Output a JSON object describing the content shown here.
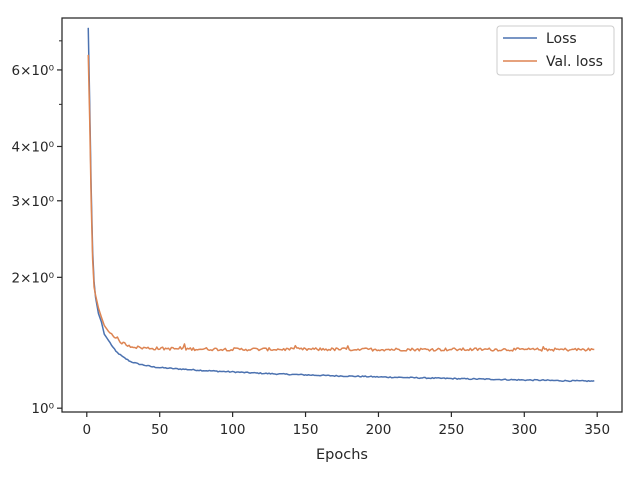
{
  "chart_data": {
    "type": "line",
    "title": "",
    "xlabel": "Epochs",
    "ylabel": "",
    "xlim": [
      -17,
      367
    ],
    "ylim": [
      0.98,
      7.9
    ],
    "yscale": "log",
    "grid": false,
    "legend_position": "top-right",
    "x_ticks": [
      0,
      50,
      100,
      150,
      200,
      250,
      300,
      350
    ],
    "x_tick_labels": [
      "0",
      "50",
      "100",
      "150",
      "200",
      "250",
      "300",
      "350"
    ],
    "y_major_ticks": [
      1,
      2,
      3,
      4,
      6
    ],
    "y_major_tick_labels": [
      "10⁰",
      "2×10⁰",
      "3×10⁰",
      "4×10⁰",
      "6×10⁰"
    ],
    "y_minor_ticks": [
      5,
      7
    ],
    "series": [
      {
        "name": "Loss",
        "color": "#4c72b0",
        "points": [
          [
            1,
            7.5
          ],
          [
            2,
            5.0
          ],
          [
            3,
            3.2
          ],
          [
            4,
            2.3
          ],
          [
            5,
            1.95
          ],
          [
            6,
            1.8
          ],
          [
            8,
            1.65
          ],
          [
            10,
            1.58
          ],
          [
            12,
            1.48
          ],
          [
            15,
            1.43
          ],
          [
            18,
            1.38
          ],
          [
            20,
            1.35
          ],
          [
            25,
            1.31
          ],
          [
            30,
            1.28
          ],
          [
            35,
            1.265
          ],
          [
            40,
            1.255
          ],
          [
            45,
            1.245
          ],
          [
            50,
            1.24
          ],
          [
            60,
            1.233
          ],
          [
            70,
            1.227
          ],
          [
            80,
            1.221
          ],
          [
            90,
            1.216
          ],
          [
            100,
            1.212
          ],
          [
            110,
            1.207
          ],
          [
            120,
            1.203
          ],
          [
            130,
            1.199
          ],
          [
            140,
            1.196
          ],
          [
            150,
            1.193
          ],
          [
            160,
            1.19
          ],
          [
            170,
            1.187
          ],
          [
            180,
            1.185
          ],
          [
            190,
            1.183
          ],
          [
            200,
            1.18
          ],
          [
            210,
            1.178
          ],
          [
            220,
            1.176
          ],
          [
            230,
            1.174
          ],
          [
            240,
            1.172
          ],
          [
            250,
            1.17
          ],
          [
            260,
            1.168
          ],
          [
            270,
            1.167
          ],
          [
            280,
            1.165
          ],
          [
            290,
            1.163
          ],
          [
            300,
            1.161
          ],
          [
            310,
            1.16
          ],
          [
            320,
            1.158
          ],
          [
            330,
            1.156
          ],
          [
            340,
            1.155
          ],
          [
            348,
            1.154
          ]
        ]
      },
      {
        "name": "Val. loss",
        "color": "#dd8452",
        "points": [
          [
            1,
            6.5
          ],
          [
            2,
            4.6
          ],
          [
            3,
            3.0
          ],
          [
            4,
            2.2
          ],
          [
            5,
            1.9
          ],
          [
            6,
            1.82
          ],
          [
            8,
            1.7
          ],
          [
            10,
            1.62
          ],
          [
            12,
            1.55
          ],
          [
            15,
            1.5
          ],
          [
            18,
            1.47
          ],
          [
            20,
            1.44
          ],
          [
            25,
            1.41
          ],
          [
            30,
            1.39
          ],
          [
            35,
            1.38
          ],
          [
            40,
            1.375
          ],
          [
            50,
            1.372
          ],
          [
            60,
            1.37
          ],
          [
            70,
            1.369
          ],
          [
            80,
            1.368
          ],
          [
            90,
            1.367
          ],
          [
            100,
            1.366
          ],
          [
            120,
            1.366
          ],
          [
            140,
            1.366
          ],
          [
            160,
            1.366
          ],
          [
            180,
            1.366
          ],
          [
            200,
            1.365
          ],
          [
            220,
            1.365
          ],
          [
            240,
            1.365
          ],
          [
            260,
            1.365
          ],
          [
            280,
            1.365
          ],
          [
            300,
            1.364
          ],
          [
            320,
            1.364
          ],
          [
            340,
            1.364
          ],
          [
            348,
            1.364
          ]
        ]
      }
    ]
  }
}
